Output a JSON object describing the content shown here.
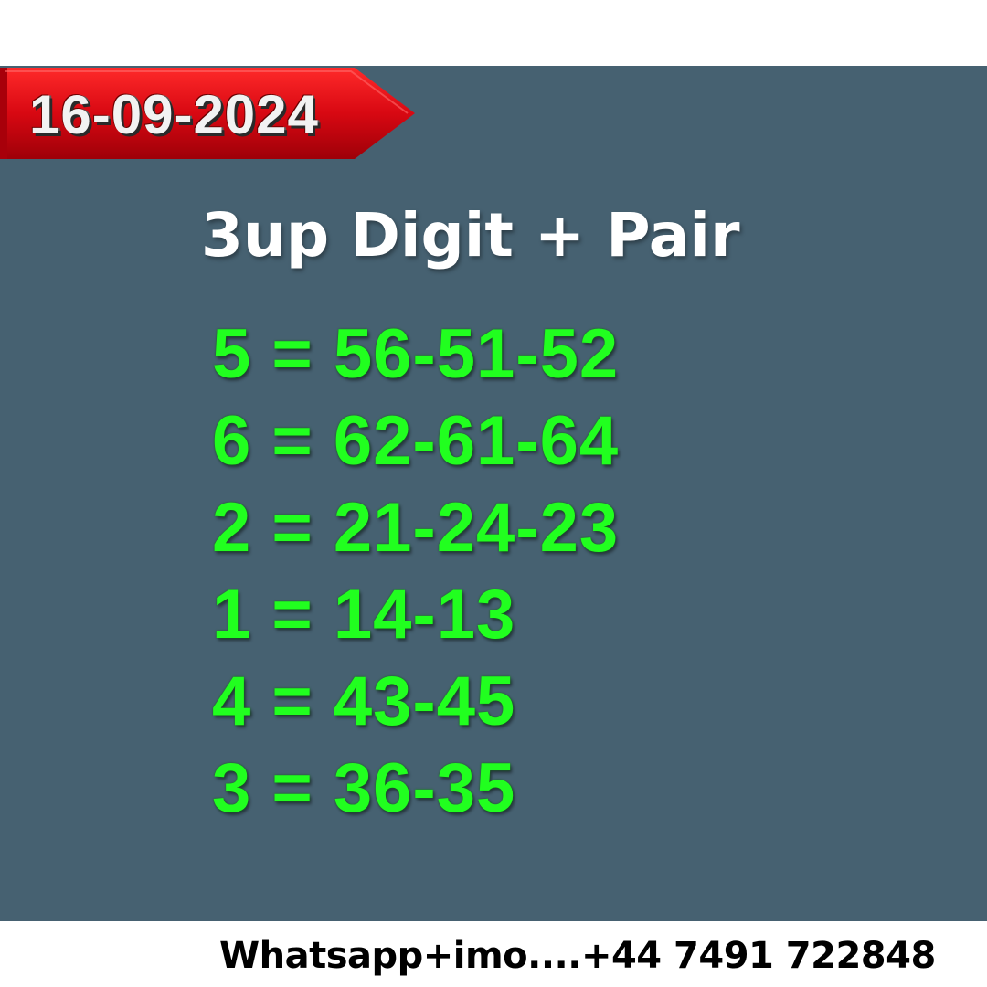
{
  "date": "16-09-2024",
  "title": "3up Digit + Pair",
  "rows": [
    "5 = 56-51-52",
    "6 = 62-61-64",
    "2 = 21-24-23",
    "1 = 14-13",
    "4 = 43-45",
    "3 = 36-35"
  ],
  "contact": "Whatsapp+imo....+44 7491 722848",
  "colors": {
    "panel": "#466171",
    "ribbon": "#d10a14",
    "numbers": "#21ff1f",
    "title": "#ffffff"
  }
}
